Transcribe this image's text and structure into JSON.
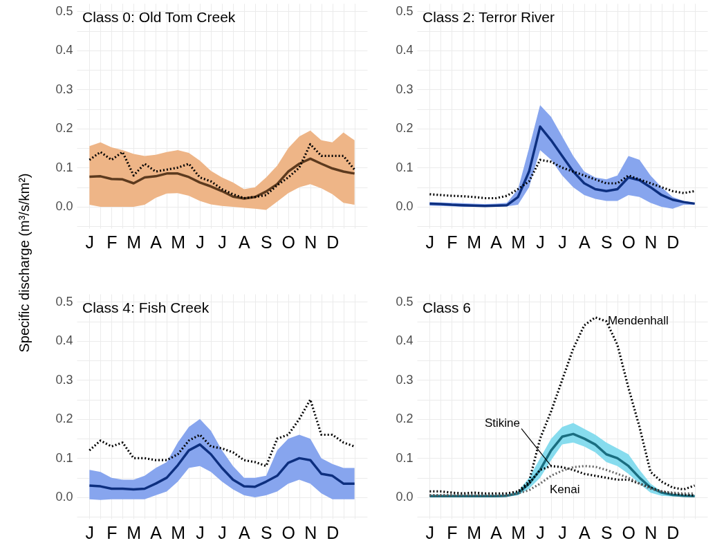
{
  "chart_data": [
    {
      "type": "line",
      "title": "Class 0: Old Tom Creek",
      "ylabel": "Specific discharge (m³/s/km²)",
      "grid": true,
      "marker": "none",
      "ylim": [
        -0.055,
        0.52
      ],
      "categories": [
        "J",
        null,
        "F",
        null,
        "M",
        null,
        "A",
        null,
        "M",
        null,
        "J",
        null,
        "J",
        null,
        "A",
        null,
        "S",
        null,
        "O",
        null,
        "N",
        null,
        "D",
        null,
        null
      ],
      "yticks": [
        {
          "value": -0.05,
          "label": null
        },
        {
          "value": 0,
          "label": "0.0"
        },
        {
          "value": 0.05,
          "label": null
        },
        {
          "value": 0.1,
          "label": "0.1"
        },
        {
          "value": 0.15,
          "label": null
        },
        {
          "value": 0.2,
          "label": "0.2"
        },
        {
          "value": 0.25,
          "label": null
        },
        {
          "value": 0.3,
          "label": "0.3"
        },
        {
          "value": 0.35,
          "label": null
        },
        {
          "value": 0.4,
          "label": "0.4"
        },
        {
          "value": 0.45,
          "label": null
        },
        {
          "value": 0.5,
          "label": "0.5"
        }
      ],
      "series": [
        {
          "line_style": "solid",
          "color": "#5c3a1e",
          "lower": [
            0.005,
            0,
            0,
            0,
            0,
            0.005,
            0.023,
            0.034,
            0.035,
            0.028,
            0.015,
            0.006,
            0.002,
            0,
            -0.003,
            -0.005,
            -0.008,
            0.013,
            0.035,
            0.05,
            0.058,
            0.047,
            0.032,
            0.01,
            0.005
          ],
          "upper": [
            0.155,
            0.165,
            0.152,
            0.145,
            0.135,
            0.13,
            0.133,
            0.14,
            0.145,
            0.138,
            0.118,
            0.092,
            0.075,
            0.062,
            0.045,
            0.05,
            0.075,
            0.105,
            0.15,
            0.18,
            0.195,
            0.17,
            0.165,
            0.19,
            0.17
          ],
          "values": [
            0.077,
            0.078,
            0.071,
            0.07,
            0.06,
            0.075,
            0.078,
            0.085,
            0.085,
            0.076,
            0.062,
            0.052,
            0.04,
            0.026,
            0.021,
            0.025,
            0.039,
            0.058,
            0.09,
            0.11,
            0.123,
            0.11,
            0.098,
            0.09,
            0.085
          ]
        },
        {
          "line_style": "dotted",
          "color": "#000000",
          "values": [
            0.12,
            0.14,
            0.12,
            0.14,
            0.08,
            0.11,
            0.09,
            0.095,
            0.1,
            0.11,
            0.075,
            0.065,
            0.045,
            0.032,
            0.022,
            0.025,
            0.03,
            0.055,
            0.075,
            0.1,
            0.16,
            0.13,
            0.13,
            0.13,
            0.095
          ]
        }
      ]
    },
    {
      "type": "line",
      "title": "Class 2: Terror River",
      "grid": true,
      "marker": "none",
      "ylim": [
        -0.055,
        0.52
      ],
      "categories": [
        "J",
        null,
        "F",
        null,
        "M",
        null,
        "A",
        null,
        "M",
        null,
        "J",
        null,
        "J",
        null,
        "A",
        null,
        "S",
        null,
        "O",
        null,
        "N",
        null,
        "D",
        null,
        null
      ],
      "yticks": [
        {
          "value": -0.05,
          "label": null
        },
        {
          "value": 0,
          "label": "0.0"
        },
        {
          "value": 0.05,
          "label": null
        },
        {
          "value": 0.1,
          "label": "0.1"
        },
        {
          "value": 0.15,
          "label": null
        },
        {
          "value": 0.2,
          "label": "0.2"
        },
        {
          "value": 0.25,
          "label": null
        },
        {
          "value": 0.3,
          "label": "0.3"
        },
        {
          "value": 0.35,
          "label": null
        },
        {
          "value": 0.4,
          "label": "0.4"
        },
        {
          "value": 0.45,
          "label": null
        },
        {
          "value": 0.5,
          "label": "0.5"
        }
      ],
      "series": [
        {
          "line_style": "solid",
          "color": "#0d2f7f",
          "lower": [
            0.003,
            0.002,
            0.001,
            0,
            0,
            0,
            0,
            0.001,
            0.005,
            0.05,
            0.145,
            0.12,
            0.08,
            0.05,
            0.03,
            0.02,
            0.015,
            0.015,
            0.03,
            0.025,
            0.01,
            0,
            -0.005,
            0.005,
            0.005
          ],
          "upper": [
            0.012,
            0.011,
            0.01,
            0.009,
            0.008,
            0.007,
            0.008,
            0.01,
            0.045,
            0.15,
            0.26,
            0.23,
            0.18,
            0.13,
            0.09,
            0.075,
            0.07,
            0.08,
            0.13,
            0.12,
            0.08,
            0.05,
            0.025,
            0.015,
            0.01
          ],
          "values": [
            0.008,
            0.007,
            0.005,
            0.004,
            0.003,
            0.002,
            0.003,
            0.004,
            0.025,
            0.09,
            0.205,
            0.17,
            0.13,
            0.09,
            0.06,
            0.045,
            0.04,
            0.045,
            0.075,
            0.068,
            0.05,
            0.03,
            0.018,
            0.012,
            0.008
          ]
        },
        {
          "line_style": "dotted",
          "color": "#000000",
          "values": [
            0.032,
            0.03,
            0.028,
            0.027,
            0.025,
            0.022,
            0.022,
            0.028,
            0.045,
            0.065,
            0.12,
            0.115,
            0.1,
            0.09,
            0.08,
            0.07,
            0.06,
            0.06,
            0.08,
            0.07,
            0.06,
            0.05,
            0.04,
            0.035,
            0.04
          ]
        }
      ]
    },
    {
      "type": "line",
      "title": "Class 4: Fish Creek",
      "grid": true,
      "marker": "none",
      "ylim": [
        -0.055,
        0.52
      ],
      "categories": [
        "J",
        null,
        "F",
        null,
        "M",
        null,
        "A",
        null,
        "M",
        null,
        "J",
        null,
        "J",
        null,
        "A",
        null,
        "S",
        null,
        "O",
        null,
        "N",
        null,
        "D",
        null,
        null
      ],
      "yticks": [
        {
          "value": -0.05,
          "label": null
        },
        {
          "value": 0,
          "label": "0.0"
        },
        {
          "value": 0.05,
          "label": null
        },
        {
          "value": 0.1,
          "label": "0.1"
        },
        {
          "value": 0.15,
          "label": null
        },
        {
          "value": 0.2,
          "label": "0.2"
        },
        {
          "value": 0.25,
          "label": null
        },
        {
          "value": 0.3,
          "label": "0.3"
        },
        {
          "value": 0.35,
          "label": null
        },
        {
          "value": 0.4,
          "label": "0.4"
        },
        {
          "value": 0.45,
          "label": null
        },
        {
          "value": 0.5,
          "label": "0.5"
        }
      ],
      "series": [
        {
          "line_style": "solid",
          "color": "#0d2f7f",
          "lower": [
            -0.005,
            -0.007,
            -0.005,
            -0.005,
            -0.005,
            -0.005,
            0.005,
            0.015,
            0.04,
            0.075,
            0.08,
            0.065,
            0.04,
            0.02,
            0.005,
            0,
            0.005,
            0.015,
            0.035,
            0.045,
            0.035,
            0.01,
            -0.005,
            -0.005,
            -0.005
          ],
          "upper": [
            0.07,
            0.065,
            0.05,
            0.045,
            0.045,
            0.055,
            0.075,
            0.09,
            0.14,
            0.18,
            0.2,
            0.17,
            0.12,
            0.08,
            0.05,
            0.05,
            0.055,
            0.12,
            0.15,
            0.16,
            0.15,
            0.1,
            0.085,
            0.075,
            0.075
          ],
          "values": [
            0.03,
            0.028,
            0.022,
            0.022,
            0.02,
            0.022,
            0.035,
            0.05,
            0.082,
            0.12,
            0.135,
            0.11,
            0.075,
            0.045,
            0.028,
            0.027,
            0.04,
            0.055,
            0.088,
            0.1,
            0.095,
            0.06,
            0.055,
            0.035,
            0.035
          ]
        },
        {
          "line_style": "dotted",
          "color": "#000000",
          "values": [
            0.12,
            0.145,
            0.13,
            0.14,
            0.1,
            0.1,
            0.095,
            0.095,
            0.11,
            0.145,
            0.16,
            0.13,
            0.125,
            0.115,
            0.095,
            0.09,
            0.08,
            0.15,
            0.16,
            0.2,
            0.25,
            0.16,
            0.16,
            0.14,
            0.13
          ]
        }
      ]
    },
    {
      "type": "line",
      "title": "Class 6",
      "grid": true,
      "marker": "none",
      "ylim": [
        -0.055,
        0.52
      ],
      "categories": [
        "J",
        null,
        "F",
        null,
        "M",
        null,
        "A",
        null,
        "M",
        null,
        "J",
        null,
        "J",
        null,
        "A",
        null,
        "S",
        null,
        "O",
        null,
        "N",
        null,
        "D",
        null,
        null
      ],
      "yticks": [
        {
          "value": -0.05,
          "label": null
        },
        {
          "value": 0,
          "label": "0.0"
        },
        {
          "value": 0.05,
          "label": null
        },
        {
          "value": 0.1,
          "label": "0.1"
        },
        {
          "value": 0.15,
          "label": null
        },
        {
          "value": 0.2,
          "label": "0.2"
        },
        {
          "value": 0.25,
          "label": null
        },
        {
          "value": 0.3,
          "label": "0.3"
        },
        {
          "value": 0.35,
          "label": null
        },
        {
          "value": 0.4,
          "label": "0.4"
        },
        {
          "value": 0.45,
          "label": null
        },
        {
          "value": 0.5,
          "label": "0.5"
        }
      ],
      "series": [
        {
          "line_style": "solid",
          "color": "#1a6e80",
          "lower": [
            0,
            0,
            0,
            0,
            0,
            0,
            0,
            0.001,
            0.005,
            0.022,
            0.05,
            0.095,
            0.135,
            0.14,
            0.13,
            0.115,
            0.09,
            0.08,
            0.06,
            0.035,
            0.012,
            0.004,
            0.002,
            0.001,
            0.001
          ],
          "upper": [
            0.006,
            0.006,
            0.006,
            0.006,
            0.006,
            0.006,
            0.006,
            0.007,
            0.015,
            0.05,
            0.1,
            0.15,
            0.18,
            0.19,
            0.175,
            0.16,
            0.14,
            0.125,
            0.11,
            0.07,
            0.035,
            0.015,
            0.009,
            0.006,
            0.005
          ],
          "values": [
            0.003,
            0.003,
            0.003,
            0.003,
            0.003,
            0.003,
            0.003,
            0.004,
            0.01,
            0.035,
            0.07,
            0.12,
            0.155,
            0.162,
            0.15,
            0.135,
            0.11,
            0.1,
            0.08,
            0.05,
            0.025,
            0.012,
            0.006,
            0.004,
            0.003
          ]
        },
        {
          "name": "Mendenhall",
          "line_style": "dotted",
          "color": "#000000",
          "values": [
            0.015,
            0.015,
            0.012,
            0.01,
            0.012,
            0.01,
            0.01,
            0.01,
            0.015,
            0.04,
            0.15,
            0.22,
            0.3,
            0.38,
            0.44,
            0.46,
            0.45,
            0.39,
            0.28,
            0.18,
            0.065,
            0.04,
            0.025,
            0.02,
            0.03
          ]
        },
        {
          "name": "Stikine",
          "line_style": "dotted",
          "color": "#000000",
          "values": [
            0.005,
            0.005,
            0.005,
            0.005,
            0.005,
            0.005,
            0.005,
            0.006,
            0.012,
            0.035,
            0.07,
            0.08,
            0.077,
            0.07,
            0.06,
            0.055,
            0.05,
            0.045,
            0.045,
            0.035,
            0.025,
            0.015,
            0.01,
            0.007,
            0.005
          ]
        },
        {
          "name": "Kenai",
          "line_style": "dotted",
          "color": "#666666",
          "values": [
            0.005,
            0.005,
            0.005,
            0.005,
            0.005,
            0.005,
            0.005,
            0.005,
            0.01,
            0.018,
            0.035,
            0.055,
            0.068,
            0.077,
            0.08,
            0.078,
            0.07,
            0.06,
            0.05,
            0.035,
            0.022,
            0.015,
            0.012,
            0.01,
            0.01
          ]
        }
      ]
    }
  ]
}
